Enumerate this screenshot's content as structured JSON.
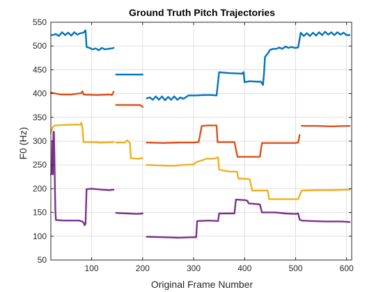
{
  "chart_data": {
    "type": "line",
    "title": "Ground Truth Pitch Trajectories",
    "xlabel": "Original Frame Number",
    "ylabel": "F0 (Hz)",
    "xlim": [
      20,
      610
    ],
    "ylim": [
      50,
      550
    ],
    "xticks": [
      100,
      200,
      300,
      400,
      500,
      600
    ],
    "yticks": [
      50,
      100,
      150,
      200,
      250,
      300,
      350,
      400,
      450,
      500,
      550
    ],
    "grid": true,
    "legend": "none",
    "series": [
      {
        "color": "#0072BD",
        "segments": [
          [
            [
              22,
              523
            ],
            [
              30,
              525
            ],
            [
              36,
              521
            ],
            [
              42,
              529
            ],
            [
              48,
              523
            ],
            [
              54,
              528
            ],
            [
              60,
              522
            ],
            [
              66,
              529
            ],
            [
              72,
              524
            ],
            [
              78,
              527
            ],
            [
              84,
              528
            ],
            [
              88,
              533
            ],
            [
              90,
              498
            ],
            [
              96,
              496
            ],
            [
              102,
              493
            ],
            [
              108,
              495
            ],
            [
              114,
              491
            ],
            [
              120,
              496
            ],
            [
              126,
              493
            ],
            [
              132,
              494
            ],
            [
              140,
              495
            ],
            [
              143,
              496
            ]
          ],
          [
            [
              148,
              440
            ],
            [
              175,
              440
            ],
            [
              200,
              440
            ]
          ],
          [
            [
              208,
              390
            ],
            [
              214,
              392
            ],
            [
              220,
              387
            ],
            [
              226,
              394
            ],
            [
              232,
              387
            ],
            [
              238,
              394
            ],
            [
              244,
              386
            ],
            [
              250,
              393
            ],
            [
              256,
              387
            ],
            [
              262,
              394
            ],
            [
              268,
              387
            ],
            [
              274,
              392
            ],
            [
              280,
              389
            ],
            [
              290,
              396
            ],
            [
              305,
              396
            ],
            [
              320,
              397
            ],
            [
              335,
              397
            ],
            [
              345,
              396
            ],
            [
              350,
              445
            ],
            [
              370,
              443
            ],
            [
              395,
              442
            ],
            [
              398,
              445
            ],
            [
              400,
              424
            ],
            [
              410,
              426
            ],
            [
              425,
              425
            ],
            [
              432,
              425
            ],
            [
              436,
              418
            ],
            [
              438,
              443
            ],
            [
              440,
              477
            ],
            [
              446,
              485
            ],
            [
              450,
              492
            ],
            [
              456,
              494
            ],
            [
              462,
              494
            ],
            [
              468,
              497
            ],
            [
              474,
              494
            ],
            [
              480,
              499
            ],
            [
              486,
              496
            ],
            [
              492,
              498
            ],
            [
              498,
              496
            ],
            [
              505,
              497
            ],
            [
              510,
              528
            ],
            [
              516,
              521
            ],
            [
              522,
              527
            ],
            [
              528,
              521
            ],
            [
              534,
              528
            ],
            [
              540,
              522
            ],
            [
              546,
              529
            ],
            [
              552,
              523
            ],
            [
              558,
              530
            ],
            [
              564,
              524
            ],
            [
              570,
              529
            ],
            [
              576,
              523
            ],
            [
              582,
              529
            ],
            [
              588,
              524
            ],
            [
              594,
              528
            ],
            [
              600,
              523
            ],
            [
              606,
              523
            ]
          ]
        ]
      },
      {
        "color": "#D95319",
        "segments": [
          [
            [
              20,
              402
            ],
            [
              40,
              398
            ],
            [
              60,
              398
            ],
            [
              80,
              401
            ],
            [
              82,
              405
            ],
            [
              84,
              398
            ],
            [
              110,
              397
            ],
            [
              135,
              398
            ],
            [
              140,
              397
            ],
            [
              143,
              404
            ]
          ],
          [
            [
              148,
              376
            ],
            [
              175,
              376
            ],
            [
              195,
              376
            ],
            [
              200,
              372
            ]
          ],
          [
            [
              208,
              297
            ],
            [
              240,
              296
            ],
            [
              270,
              297
            ],
            [
              300,
              297
            ],
            [
              310,
              298
            ],
            [
              316,
              332
            ],
            [
              330,
              333
            ],
            [
              345,
              333
            ],
            [
              347,
              298
            ],
            [
              370,
              298
            ],
            [
              380,
              298
            ],
            [
              386,
              267
            ],
            [
              400,
              267
            ],
            [
              420,
              267
            ],
            [
              430,
              267
            ],
            [
              434,
              296
            ],
            [
              460,
              296
            ],
            [
              480,
              296
            ],
            [
              500,
              296
            ],
            [
              505,
              297
            ],
            [
              508,
              313
            ]
          ],
          [
            [
              512,
              332
            ],
            [
              540,
              332
            ],
            [
              570,
              331
            ],
            [
              606,
              332
            ]
          ]
        ]
      },
      {
        "color": "#EDB120",
        "segments": [
          [
            [
              20,
              318
            ],
            [
              24,
              330
            ],
            [
              28,
              333
            ],
            [
              50,
              334
            ],
            [
              70,
              335
            ],
            [
              78,
              334
            ],
            [
              80,
              339
            ],
            [
              82,
              328
            ],
            [
              84,
              298
            ],
            [
              100,
              298
            ],
            [
              120,
              297
            ],
            [
              143,
              298
            ]
          ],
          [
            [
              148,
              297
            ],
            [
              165,
              297
            ],
            [
              170,
              302
            ],
            [
              175,
              296
            ],
            [
              177,
              264
            ],
            [
              190,
              263
            ],
            [
              200,
              264
            ]
          ],
          [
            [
              208,
              250
            ],
            [
              230,
              249
            ],
            [
              260,
              248
            ],
            [
              280,
              250
            ],
            [
              300,
              251
            ],
            [
              305,
              256
            ],
            [
              318,
              260
            ],
            [
              325,
              263
            ],
            [
              340,
              263
            ],
            [
              348,
              266
            ],
            [
              350,
              240
            ],
            [
              370,
              236
            ],
            [
              385,
              236
            ],
            [
              388,
              221
            ],
            [
              400,
              221
            ],
            [
              410,
              220
            ],
            [
              415,
              196
            ],
            [
              440,
              196
            ],
            [
              445,
              196
            ],
            [
              448,
              178
            ],
            [
              470,
              178
            ],
            [
              490,
              178
            ],
            [
              505,
              178
            ],
            [
              508,
              186
            ],
            [
              512,
              196
            ],
            [
              540,
              197
            ],
            [
              570,
              197
            ],
            [
              606,
              198
            ]
          ]
        ]
      },
      {
        "color": "#7E2F8E",
        "segments": [
          [
            [
              20,
              230
            ],
            [
              22,
              233
            ],
            [
              23,
              300
            ],
            [
              24,
              230
            ],
            [
              25,
              318
            ],
            [
              26,
              320
            ],
            [
              27,
              275
            ],
            [
              28,
              200
            ],
            [
              29,
              150
            ],
            [
              30,
              134
            ],
            [
              45,
              133
            ],
            [
              60,
              133
            ],
            [
              75,
              133
            ],
            [
              82,
              131
            ],
            [
              85,
              127
            ],
            [
              86,
              123
            ],
            [
              88,
              126
            ],
            [
              90,
              199
            ],
            [
              100,
              200
            ],
            [
              120,
              198
            ],
            [
              135,
              197
            ],
            [
              143,
              198
            ]
          ],
          [
            [
              148,
              149
            ],
            [
              170,
              148
            ],
            [
              190,
              147
            ],
            [
              200,
              148
            ]
          ],
          [
            [
              208,
              99
            ],
            [
              240,
              98
            ],
            [
              270,
              97
            ],
            [
              300,
              98
            ],
            [
              305,
              98
            ],
            [
              307,
              132
            ],
            [
              330,
              133
            ],
            [
              348,
              132
            ],
            [
              350,
              148
            ],
            [
              365,
              148
            ],
            [
              380,
              148
            ],
            [
              383,
              177
            ],
            [
              400,
              176
            ],
            [
              405,
              175
            ],
            [
              408,
              169
            ],
            [
              420,
              168
            ],
            [
              430,
              167
            ],
            [
              434,
              150
            ],
            [
              460,
              150
            ],
            [
              480,
              148
            ],
            [
              500,
              147
            ],
            [
              505,
              148
            ],
            [
              508,
              135
            ],
            [
              512,
              133
            ],
            [
              530,
              132
            ],
            [
              560,
              131
            ],
            [
              590,
              131
            ],
            [
              606,
              130
            ]
          ]
        ]
      }
    ]
  }
}
